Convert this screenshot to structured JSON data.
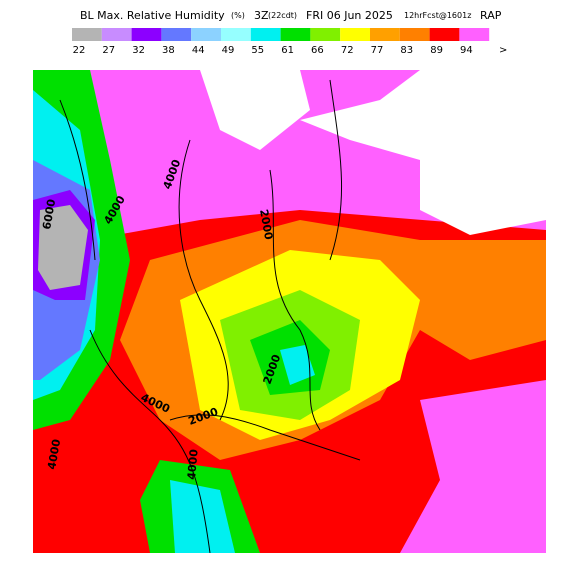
{
  "title": {
    "main": "BL Max. Relative Humidity",
    "unit": "(%)",
    "time": "3Z",
    "local": "(22cdt)",
    "date": "FRI 06 Jun 2025",
    "fcst": "12hrFcst@1601z",
    "model": "RAP"
  },
  "legend": {
    "levels": [
      22,
      27,
      32,
      38,
      44,
      49,
      55,
      61,
      66,
      72,
      77,
      83,
      89,
      94
    ],
    "colors": [
      "#b4b4b4",
      "#c88cff",
      "#8c00ff",
      "#6478ff",
      "#8cd2ff",
      "#96ffff",
      "#00f0f0",
      "#00e000",
      "#80f000",
      "#ffff00",
      "#ffa000",
      "#ff8000",
      "#ff0000",
      "#ff60ff"
    ],
    "more": ">"
  },
  "contour_labels": [
    "4000",
    "6000",
    "4000",
    "2000",
    "4000",
    "2000",
    "2000",
    "4000",
    "4000"
  ]
}
